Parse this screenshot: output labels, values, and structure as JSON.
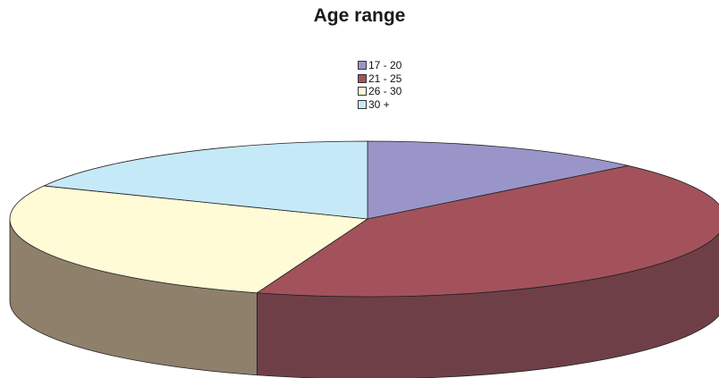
{
  "chart_data": {
    "type": "pie",
    "title": "Age range",
    "legend_position": "top",
    "categories": [
      "17 - 20",
      "21 - 25",
      "26 - 30",
      "30 +"
    ],
    "values": [
      13,
      42,
      27,
      18
    ],
    "colors": [
      "#9a95c9",
      "#a3525c",
      "#fefbd6",
      "#c6e9f8"
    ],
    "side_colors": [
      "#6f6a92",
      "#6f3f48",
      "#8f806c",
      "#7a9aa8"
    ],
    "is_3d": true
  }
}
